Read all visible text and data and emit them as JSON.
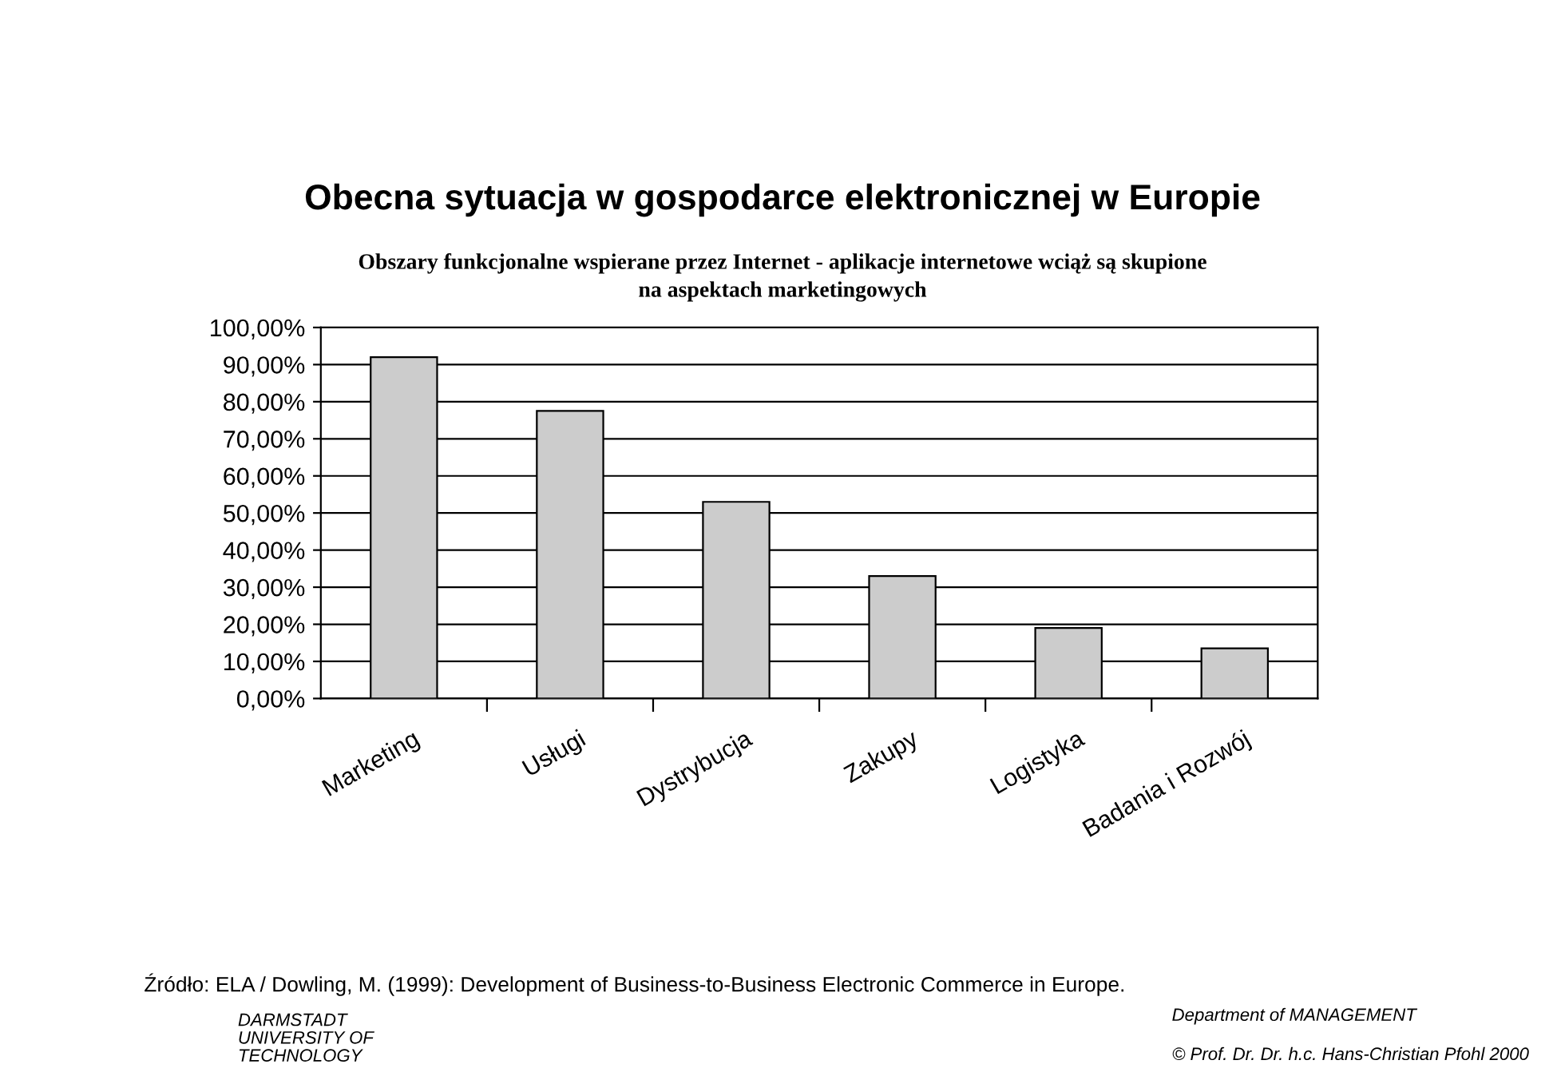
{
  "chart_data": {
    "type": "bar",
    "title": "Obecna sytuacja w gospodarce elektronicznej w Europie",
    "subtitle": "Obszary funkcjonalne wspierane przez Internet - aplikacje internetowe wciąż są skupione\nna aspektach marketingowych",
    "categories": [
      "Marketing",
      "Usługi",
      "Dystrybucja",
      "Zakupy",
      "Logistyka",
      "Badania i Rozwój"
    ],
    "values": [
      92,
      77.5,
      53,
      33,
      19,
      13.5
    ],
    "color": "#cccccc",
    "ylim": [
      0,
      100
    ],
    "yticks": [
      {
        "value": 0,
        "label": "0,00%"
      },
      {
        "value": 10,
        "label": "10,00%"
      },
      {
        "value": 20,
        "label": "20,00%"
      },
      {
        "value": 30,
        "label": "30,00%"
      },
      {
        "value": 40,
        "label": "40,00%"
      },
      {
        "value": 50,
        "label": "50,00%"
      },
      {
        "value": 60,
        "label": "60,00%"
      },
      {
        "value": 70,
        "label": "70,00%"
      },
      {
        "value": 80,
        "label": "80,00%"
      },
      {
        "value": 90,
        "label": "90,00%"
      },
      {
        "value": 100,
        "label": "100,00%"
      }
    ],
    "grid": "y",
    "legend": false,
    "annotations": [
      "Źródło: ELA / Dowling, M. (1999): Development of Business-to-Business Electronic Commerce in Europe.",
      "DARMSTADT\nUNIVERSITY OF\nTECHNOLOGY",
      "Department of MANAGEMENT",
      "© Prof. Dr. Dr. h.c. Hans-Christian Pfohl 2000"
    ]
  }
}
